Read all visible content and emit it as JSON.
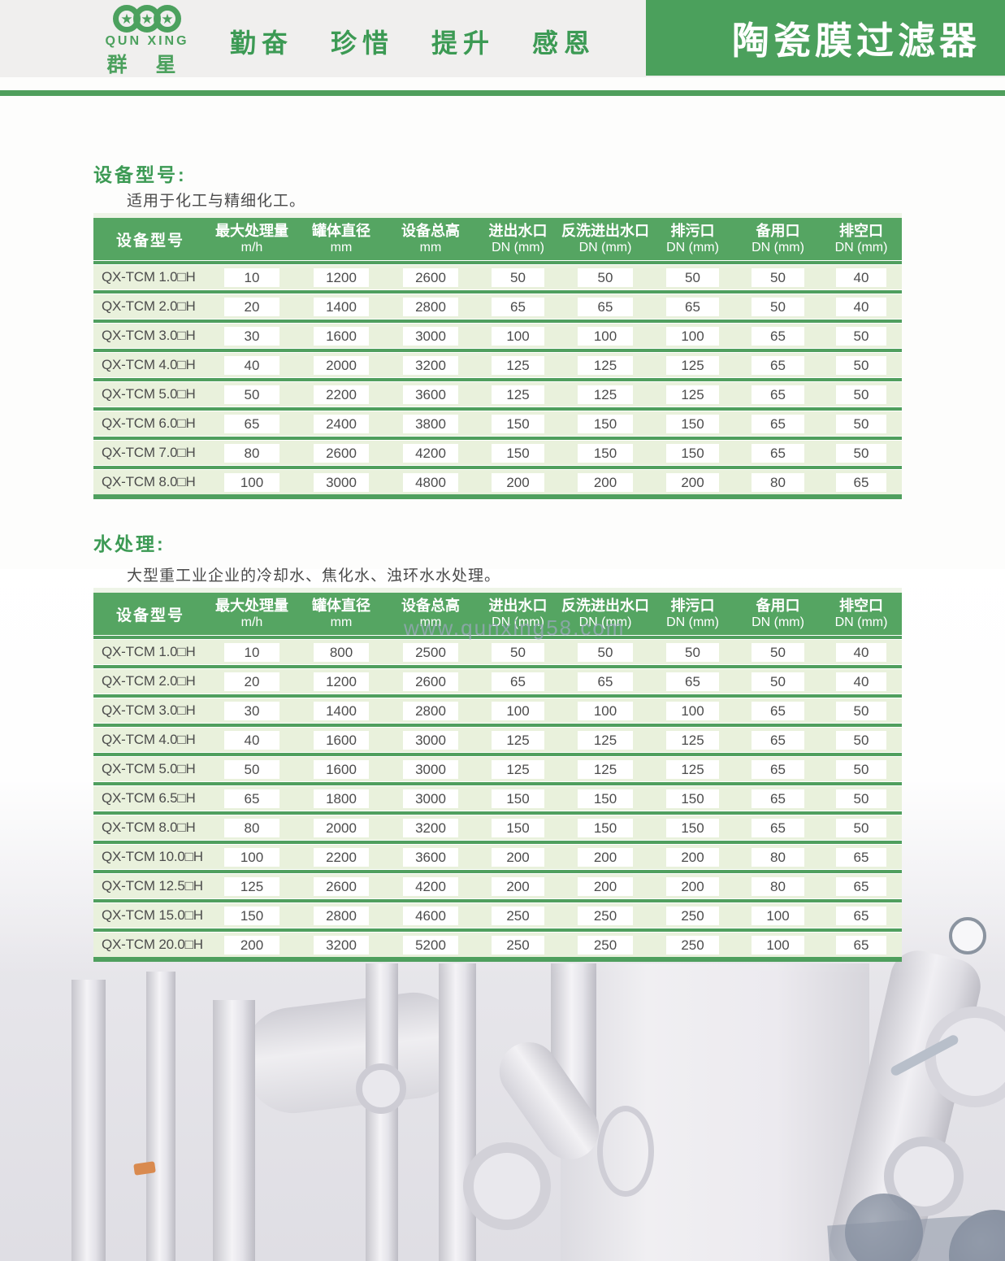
{
  "header": {
    "logo_en": "QUN XING",
    "logo_cn": "群 星",
    "slogan": [
      "勤奋",
      "珍惜",
      "提升",
      "感恩"
    ],
    "banner_title": "陶瓷膜过滤器",
    "colors": {
      "banner_green": "#4ba05c",
      "table_header_green": "#55a562",
      "row_green": "#e9f1dc",
      "heading_green": "#3c9a54"
    }
  },
  "sections": [
    {
      "heading": "设备型号:",
      "subtitle": "适用于化工与精细化工。"
    },
    {
      "heading": "水处理:",
      "subtitle": "大型重工业企业的冷却水、焦化水、浊环水水处理。"
    }
  ],
  "table_headers": {
    "col1": "设备型号",
    "cols": [
      {
        "name": "最大处理量",
        "unit": "m/h"
      },
      {
        "name": "罐体直径",
        "unit": "mm"
      },
      {
        "name": "设备总高",
        "unit": "mm"
      },
      {
        "name": "进出水口",
        "unit": "DN (mm)"
      },
      {
        "name": "反洗进出水口",
        "unit": "DN (mm)"
      },
      {
        "name": "排污口",
        "unit": "DN (mm)"
      },
      {
        "name": "备用口",
        "unit": "DN (mm)"
      },
      {
        "name": "排空口",
        "unit": "DN (mm)"
      }
    ]
  },
  "table1": {
    "rows": [
      {
        "model": "QX-TCM 1.0□H",
        "values": [
          "10",
          "1200",
          "2600",
          "50",
          "50",
          "50",
          "50",
          "40"
        ]
      },
      {
        "model": "QX-TCM 2.0□H",
        "values": [
          "20",
          "1400",
          "2800",
          "65",
          "65",
          "65",
          "50",
          "40"
        ]
      },
      {
        "model": "QX-TCM 3.0□H",
        "values": [
          "30",
          "1600",
          "3000",
          "100",
          "100",
          "100",
          "65",
          "50"
        ]
      },
      {
        "model": "QX-TCM 4.0□H",
        "values": [
          "40",
          "2000",
          "3200",
          "125",
          "125",
          "125",
          "65",
          "50"
        ]
      },
      {
        "model": "QX-TCM 5.0□H",
        "values": [
          "50",
          "2200",
          "3600",
          "125",
          "125",
          "125",
          "65",
          "50"
        ]
      },
      {
        "model": "QX-TCM 6.0□H",
        "values": [
          "65",
          "2400",
          "3800",
          "150",
          "150",
          "150",
          "65",
          "50"
        ]
      },
      {
        "model": "QX-TCM 7.0□H",
        "values": [
          "80",
          "2600",
          "4200",
          "150",
          "150",
          "150",
          "65",
          "50"
        ]
      },
      {
        "model": "QX-TCM 8.0□H",
        "values": [
          "100",
          "3000",
          "4800",
          "200",
          "200",
          "200",
          "80",
          "65"
        ]
      }
    ]
  },
  "table2": {
    "rows": [
      {
        "model": "QX-TCM 1.0□H",
        "values": [
          "10",
          "800",
          "2500",
          "50",
          "50",
          "50",
          "50",
          "40"
        ]
      },
      {
        "model": "QX-TCM 2.0□H",
        "values": [
          "20",
          "1200",
          "2600",
          "65",
          "65",
          "65",
          "50",
          "40"
        ]
      },
      {
        "model": "QX-TCM 3.0□H",
        "values": [
          "30",
          "1400",
          "2800",
          "100",
          "100",
          "100",
          "65",
          "50"
        ]
      },
      {
        "model": "QX-TCM 4.0□H",
        "values": [
          "40",
          "1600",
          "3000",
          "125",
          "125",
          "125",
          "65",
          "50"
        ]
      },
      {
        "model": "QX-TCM 5.0□H",
        "values": [
          "50",
          "1600",
          "3000",
          "125",
          "125",
          "125",
          "65",
          "50"
        ]
      },
      {
        "model": "QX-TCM 6.5□H",
        "values": [
          "65",
          "1800",
          "3000",
          "150",
          "150",
          "150",
          "65",
          "50"
        ]
      },
      {
        "model": "QX-TCM 8.0□H",
        "values": [
          "80",
          "2000",
          "3200",
          "150",
          "150",
          "150",
          "65",
          "50"
        ]
      },
      {
        "model": "QX-TCM 10.0□H",
        "values": [
          "100",
          "2200",
          "3600",
          "200",
          "200",
          "200",
          "80",
          "65"
        ]
      },
      {
        "model": "QX-TCM 12.5□H",
        "values": [
          "125",
          "2600",
          "4200",
          "200",
          "200",
          "200",
          "80",
          "65"
        ]
      },
      {
        "model": "QX-TCM 15.0□H",
        "values": [
          "150",
          "2800",
          "4600",
          "250",
          "250",
          "250",
          "100",
          "65"
        ]
      },
      {
        "model": "QX-TCM 20.0□H",
        "values": [
          "200",
          "3200",
          "5200",
          "250",
          "250",
          "250",
          "100",
          "65"
        ]
      }
    ]
  },
  "watermark": "www.qunxing58.com"
}
